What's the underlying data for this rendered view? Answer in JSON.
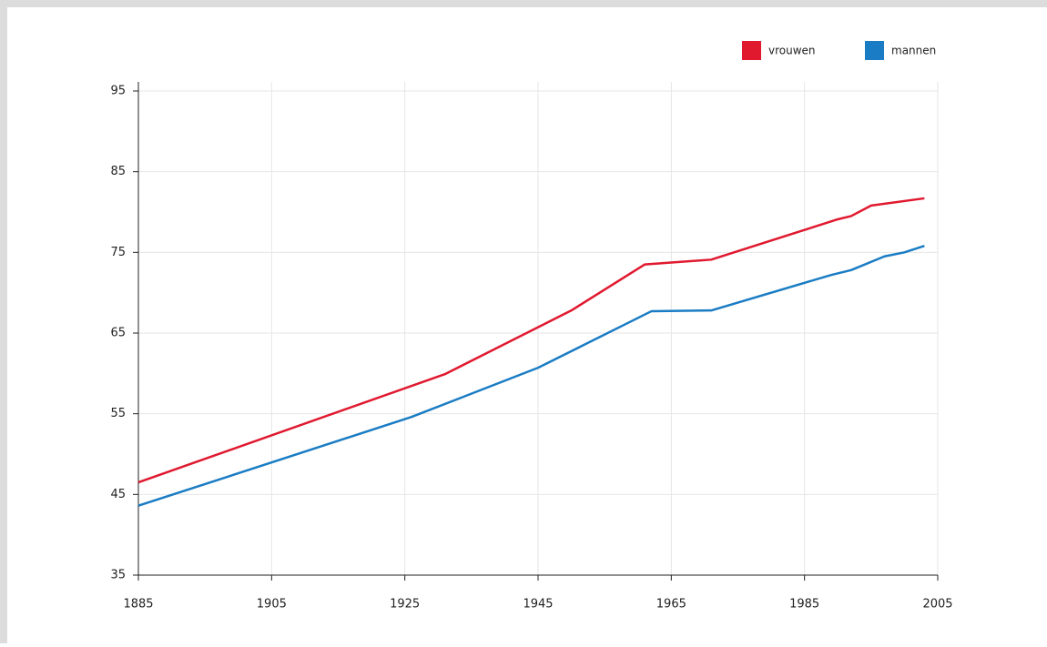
{
  "chart_data": {
    "type": "line",
    "series": [
      {
        "name": "vrouwen",
        "color": "#e0192f",
        "x": [
          1885,
          1931,
          1950,
          1961,
          1971,
          1990,
          1992,
          1995,
          2003
        ],
        "values": [
          46.5,
          59.9,
          67.8,
          73.5,
          74.1,
          79.1,
          79.5,
          80.8,
          81.7
        ]
      },
      {
        "name": "mannen",
        "color": "#1a7cc4",
        "x": [
          1885,
          1926,
          1945,
          1962,
          1971,
          1989,
          1992,
          1997,
          2000,
          2003
        ],
        "values": [
          43.6,
          54.6,
          60.7,
          67.7,
          67.8,
          72.2,
          72.8,
          74.5,
          75.0,
          75.8
        ]
      }
    ],
    "xlim": [
      1885,
      2005
    ],
    "xticks": [
      1885,
      1905,
      1925,
      1945,
      1965,
      1985,
      2005
    ],
    "ylim": [
      35,
      95
    ],
    "yticks": [
      35,
      45,
      55,
      65,
      75,
      85,
      95
    ],
    "grid": true,
    "legend": "top-right"
  }
}
